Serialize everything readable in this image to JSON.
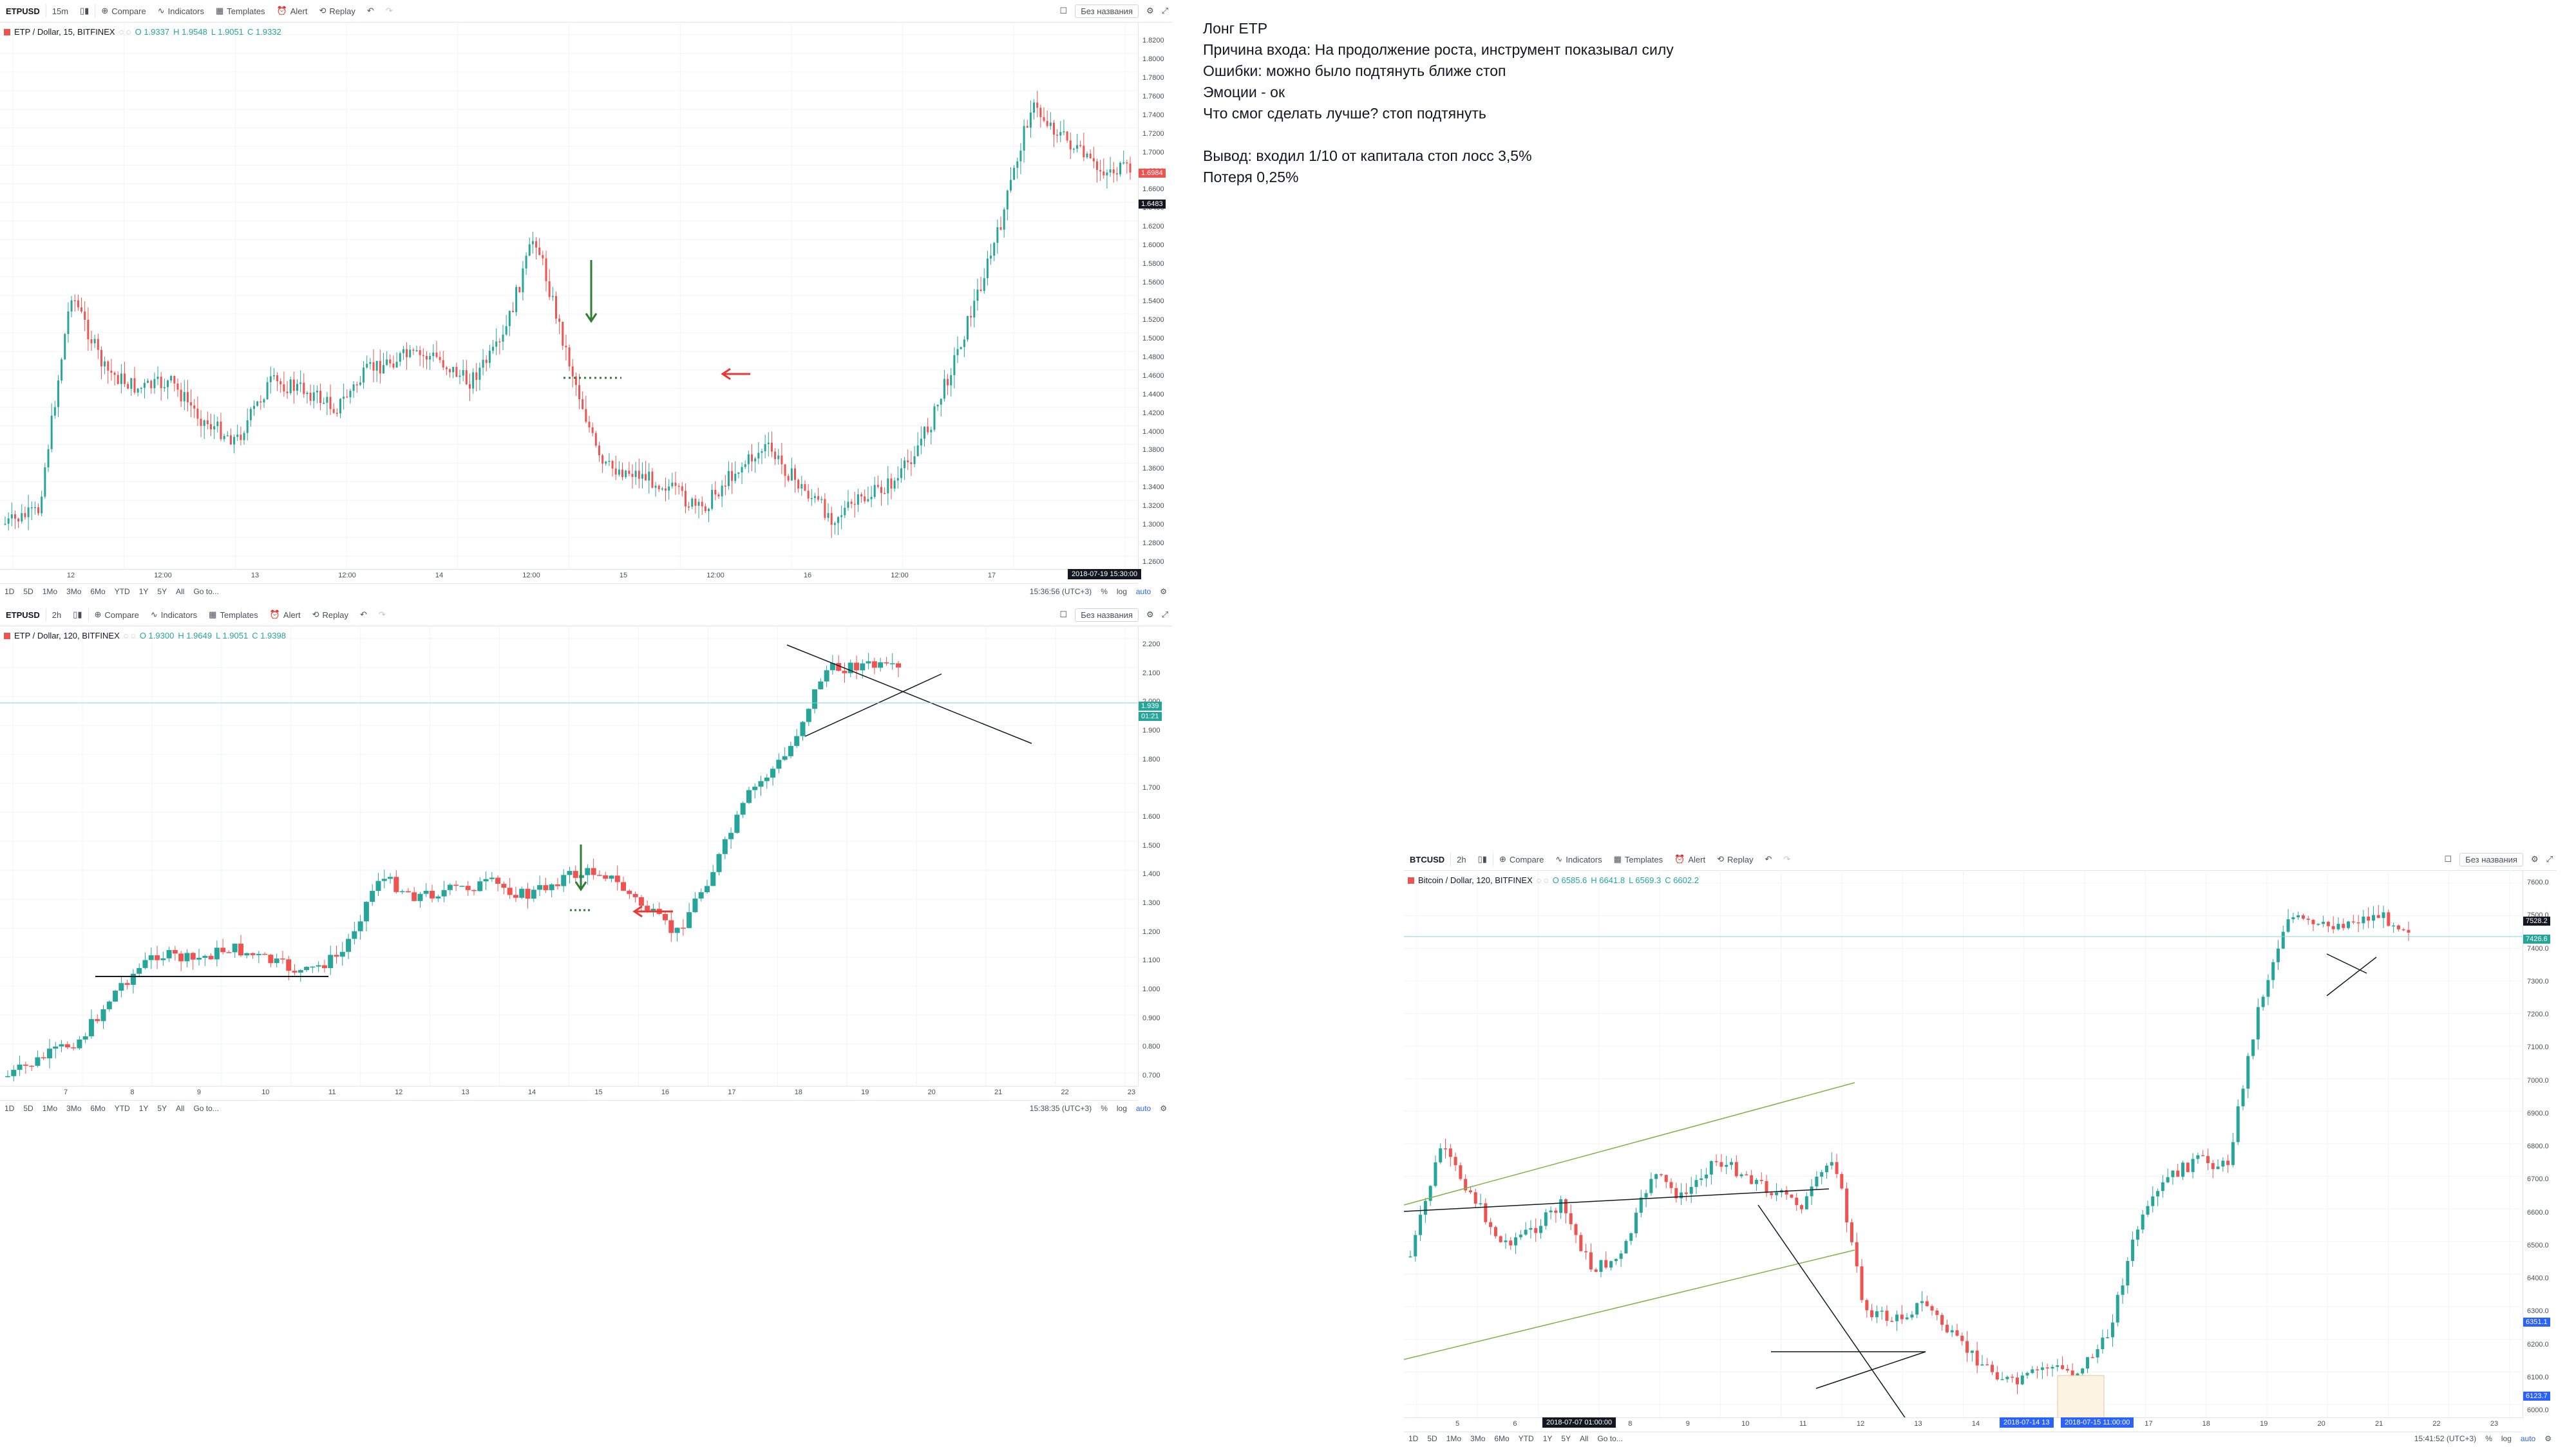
{
  "panels": [
    {
      "id": "p1",
      "symbol": "ETPUSD",
      "interval": "15m",
      "toolbar": {
        "compare": "Compare",
        "indicators": "Indicators",
        "templates": "Templates",
        "alert": "Alert",
        "replay": "Replay",
        "layout": "Без названия"
      },
      "legend": {
        "title": "ETP / Dollar, 15, BITFINEX",
        "o": "O 1.9337",
        "h": "H 1.9548",
        "l": "L 1.9051",
        "c": "C 1.9332"
      },
      "price_labels": [
        "1.8200",
        "1.8000",
        "1.7800",
        "1.7600",
        "1.7400",
        "1.7200",
        "1.7000",
        "1.6800",
        "1.6600",
        "1.6400",
        "1.6200",
        "1.6000",
        "1.5800",
        "1.5600",
        "1.5400",
        "1.5200",
        "1.5000",
        "1.4800",
        "1.4600",
        "1.4400",
        "1.4200",
        "1.4000",
        "1.3800",
        "1.3600",
        "1.3400",
        "1.3200",
        "1.3000",
        "1.2800",
        "1.2600"
      ],
      "time_labels": [
        "12",
        "12:00",
        "13",
        "12:00",
        "14",
        "12:00",
        "15",
        "12:00",
        "16",
        "12:00",
        "17"
      ],
      "crosshair_date": "2018-07-19 15:30:00",
      "price_tags": [
        "1.6984",
        "1.6483"
      ],
      "clock": "15:36:56 (UTC+3)",
      "ranges": [
        "1D",
        "5D",
        "1Mo",
        "3Mo",
        "6Mo",
        "YTD",
        "1Y",
        "5Y",
        "All"
      ],
      "goto": "Go to...",
      "scale_opts": {
        "pct": "%",
        "log": "log",
        "auto": "auto"
      }
    },
    {
      "id": "p2",
      "symbol": "ETPUSD",
      "interval": "2h",
      "toolbar": {
        "compare": "Compare",
        "indicators": "Indicators",
        "templates": "Templates",
        "alert": "Alert",
        "replay": "Replay",
        "layout": "Без названия"
      },
      "legend": {
        "title": "ETP / Dollar, 120, BITFINEX",
        "o": "O 1.9300",
        "h": "H 1.9649",
        "l": "L 1.9051",
        "c": "C 1.9398"
      },
      "price_labels": [
        "2.200",
        "2.100",
        "2.000",
        "1.900",
        "1.800",
        "1.700",
        "1.600",
        "1.500",
        "1.400",
        "1.300",
        "1.200",
        "1.100",
        "1.000",
        "0.900",
        "0.800",
        "0.700"
      ],
      "time_labels": [
        "7",
        "8",
        "9",
        "10",
        "11",
        "12",
        "13",
        "14",
        "15",
        "16",
        "17",
        "18",
        "19",
        "20",
        "21",
        "22",
        "23"
      ],
      "price_tags": [
        "1.939",
        "01:21"
      ],
      "clock": "15:38:35 (UTC+3)",
      "ranges": [
        "1D",
        "5D",
        "1Mo",
        "3Mo",
        "6Mo",
        "YTD",
        "1Y",
        "5Y",
        "All"
      ],
      "goto": "Go to...",
      "scale_opts": {
        "pct": "%",
        "log": "log",
        "auto": "auto"
      }
    },
    {
      "id": "p3",
      "symbol": "BTCUSD",
      "interval": "2h",
      "toolbar": {
        "compare": "Compare",
        "indicators": "Indicators",
        "templates": "Templates",
        "alert": "Alert",
        "replay": "Replay",
        "layout": "Без названия"
      },
      "legend": {
        "title": "Bitcoin / Dollar, 120, BITFINEX",
        "o": "O 6585.6",
        "h": "H 6641.8",
        "l": "L 6569.3",
        "c": "C 6602.2"
      },
      "price_labels": [
        "7600.0",
        "7500.0",
        "7400.0",
        "7300.0",
        "7200.0",
        "7100.0",
        "7000.0",
        "6900.0",
        "6800.0",
        "6700.0",
        "6600.0",
        "6500.0",
        "6400.0",
        "6300.0",
        "6200.0",
        "6100.0",
        "6000.0"
      ],
      "time_labels": [
        "5",
        "6",
        "7",
        "8",
        "9",
        "10",
        "11",
        "12",
        "13",
        "14",
        "15",
        "16",
        "17",
        "18",
        "19",
        "20",
        "21",
        "22",
        "23"
      ],
      "crosshair_date": "2018-07-07 01:00:00",
      "range_dates": [
        "2018-07-14 13",
        "2018-07-15 11:00:00"
      ],
      "price_tags": [
        "7528.2",
        "7426.6",
        "6351.1",
        "6123.7"
      ],
      "clock": "15:41:52 (UTC+3)",
      "ranges": [
        "1D",
        "5D",
        "1Mo",
        "3Mo",
        "6Mo",
        "YTD",
        "1Y",
        "5Y",
        "All"
      ],
      "goto": "Go to...",
      "scale_opts": {
        "pct": "%",
        "log": "log",
        "auto": "auto"
      }
    }
  ],
  "notes": {
    "line1": "Лонг ETP",
    "line2": "Причина входа: На продолжение роста, инструмент показывал силу",
    "line3": "Ошибки: можно было подтянуть ближе стоп",
    "line4": "Эмоции - ок",
    "line5": "Что смог сделать лучше? стоп подтянуть",
    "line6": "Вывод: входил 1/10 от капитала стоп лосс 3,5%",
    "line7": "Потеря 0,25%"
  },
  "colors": {
    "up": "#26a69a",
    "down": "#ef5350",
    "arrow_long": "#2e7d32",
    "arrow_exit": "#e53935",
    "accent": "#2962ff"
  }
}
